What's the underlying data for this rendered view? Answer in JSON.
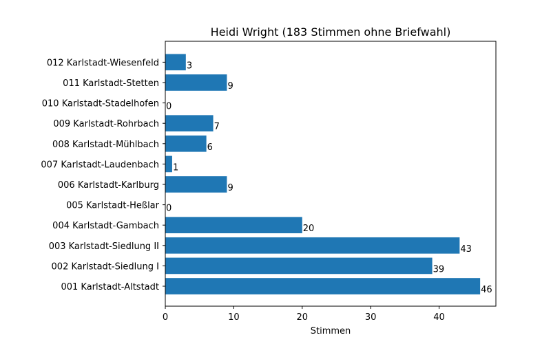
{
  "chart_data": {
    "type": "bar",
    "orientation": "horizontal",
    "title": "Heidi Wright (183 Stimmen ohne Briefwahl)",
    "xlabel": "Stimmen",
    "ylabel": "",
    "xlim": [
      0,
      48.3
    ],
    "xticks": [
      0,
      10,
      20,
      30,
      40
    ],
    "grid": false,
    "bar_color": "#1f77b4",
    "categories": [
      "001 Karlstadt-Altstadt",
      "002 Karlstadt-Siedlung I",
      "003 Karlstadt-Siedlung II",
      "004 Karlstadt-Gambach",
      "005 Karlstadt-Heßlar",
      "006 Karlstadt-Karlburg",
      "007 Karlstadt-Laudenbach",
      "008 Karlstadt-Mühlbach",
      "009 Karlstadt-Rohrbach",
      "010 Karlstadt-Stadelhofen",
      "011 Karlstadt-Stetten",
      "012 Karlstadt-Wiesenfeld"
    ],
    "values": [
      46,
      39,
      43,
      20,
      0,
      9,
      1,
      6,
      7,
      0,
      9,
      3
    ]
  }
}
